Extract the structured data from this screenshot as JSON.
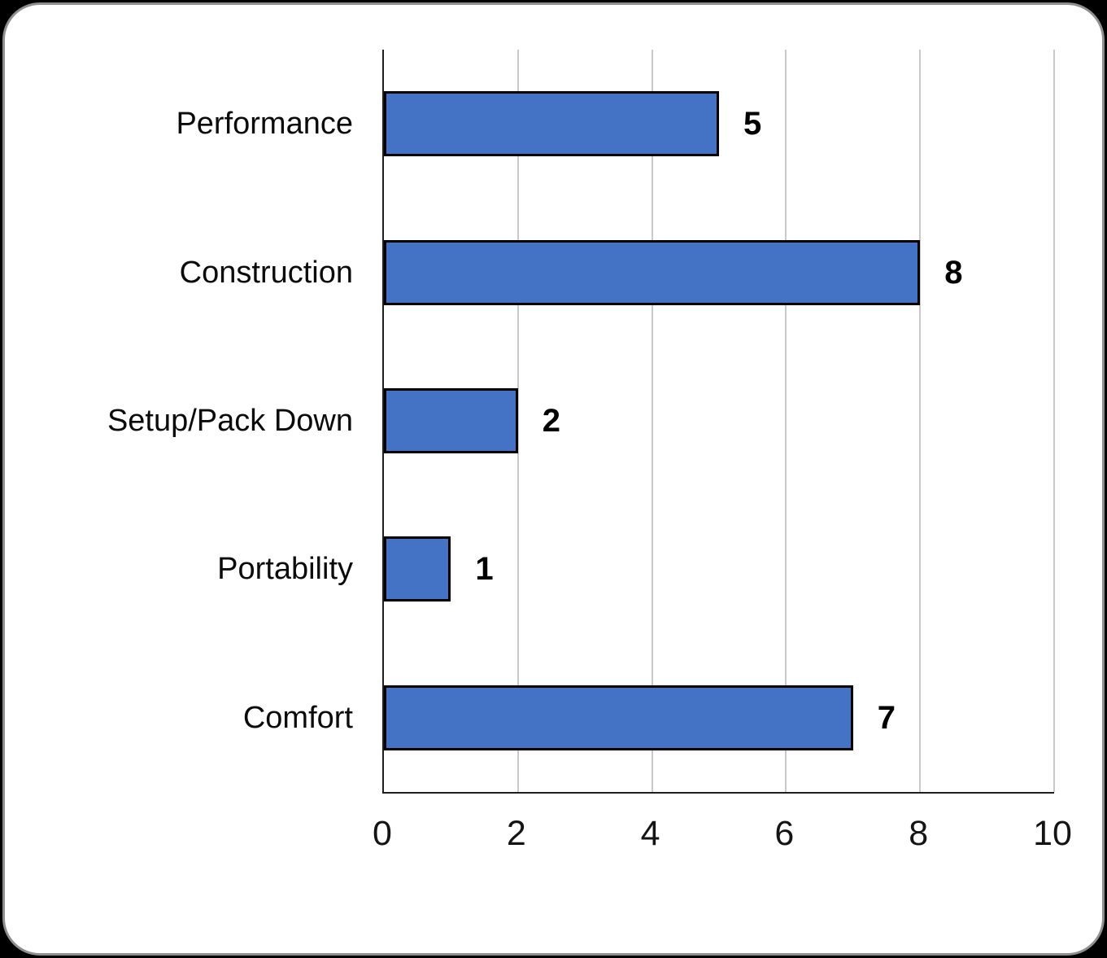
{
  "page": {
    "background_color": "#000000",
    "card_background_color": "#ffffff",
    "card_border_color": "#8f8f8f"
  },
  "chart_data": {
    "type": "bar",
    "orientation": "horizontal",
    "title": "",
    "categories": [
      "Performance",
      "Construction",
      "Setup/Pack Down",
      "Portability",
      "Comfort"
    ],
    "values": [
      5,
      8,
      2,
      1,
      7
    ],
    "data_labels": [
      "5",
      "8",
      "2",
      "1",
      "7"
    ],
    "xlabel": "",
    "ylabel": "",
    "xlim": [
      0,
      10
    ],
    "x_ticks": [
      "0",
      "2",
      "4",
      "6",
      "8",
      "10"
    ],
    "x_tick_values": [
      0,
      2,
      4,
      6,
      8,
      10
    ],
    "grid": "vertical-only",
    "legend": "none",
    "bar_fill_color": "#4472C4",
    "bar_border_color": "#000000",
    "gridline_color": "#c9c9c9",
    "axis_line_color": "#1f1f1f",
    "label_color": "#000000"
  }
}
